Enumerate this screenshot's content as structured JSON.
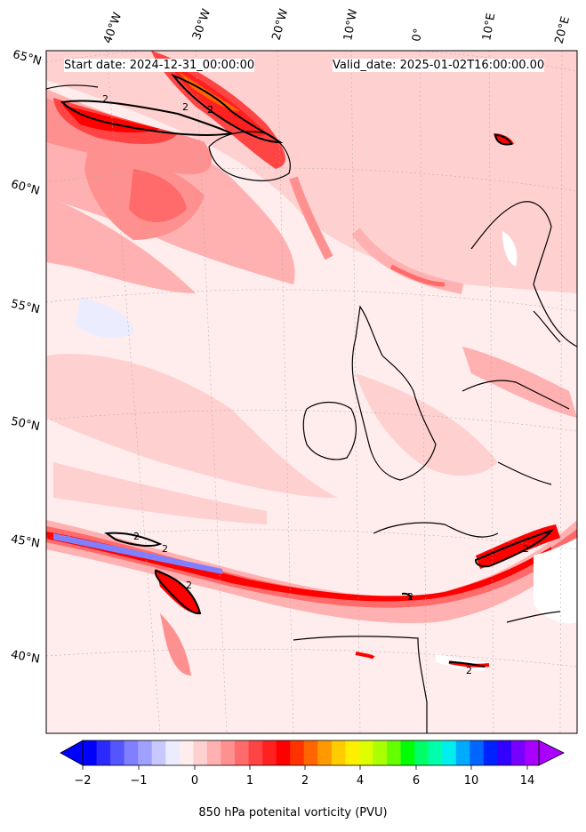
{
  "header": {
    "start_date": "Start date: 2024-12-31_00:00:00",
    "valid_date": "Valid_date: 2025-01-02T16:00:00.00"
  },
  "longitude_labels": [
    "40°W",
    "30°W",
    "20°W",
    "10°W",
    "0°",
    "10°E",
    "20°E"
  ],
  "latitude_labels": [
    "65°N",
    "60°N",
    "55°N",
    "50°N",
    "45°N",
    "40°N"
  ],
  "contour_label": "2",
  "colorbar": {
    "title": "850 hPa potenital vorticity (PVU)",
    "ticks": [
      "−2",
      "−1",
      "0",
      "1",
      "2",
      "4",
      "6",
      "10",
      "14"
    ],
    "colors": [
      "#0000ff",
      "#2a2aff",
      "#5555ff",
      "#7f7fff",
      "#a0a0ff",
      "#c8c8ff",
      "#ececff",
      "#ffecec",
      "#ffd0d0",
      "#ffb0b0",
      "#ff9090",
      "#ff6a6a",
      "#ff4444",
      "#ff2020",
      "#ff0000",
      "#ff3300",
      "#ff6600",
      "#ff9900",
      "#ffcc00",
      "#ffee00",
      "#ddff00",
      "#aaff00",
      "#66ff00",
      "#00ff00",
      "#00ff66",
      "#00ffaa",
      "#00eeee",
      "#00aaff",
      "#0066ff",
      "#0022ff",
      "#3300ff",
      "#7700ff",
      "#aa00ff"
    ]
  }
}
